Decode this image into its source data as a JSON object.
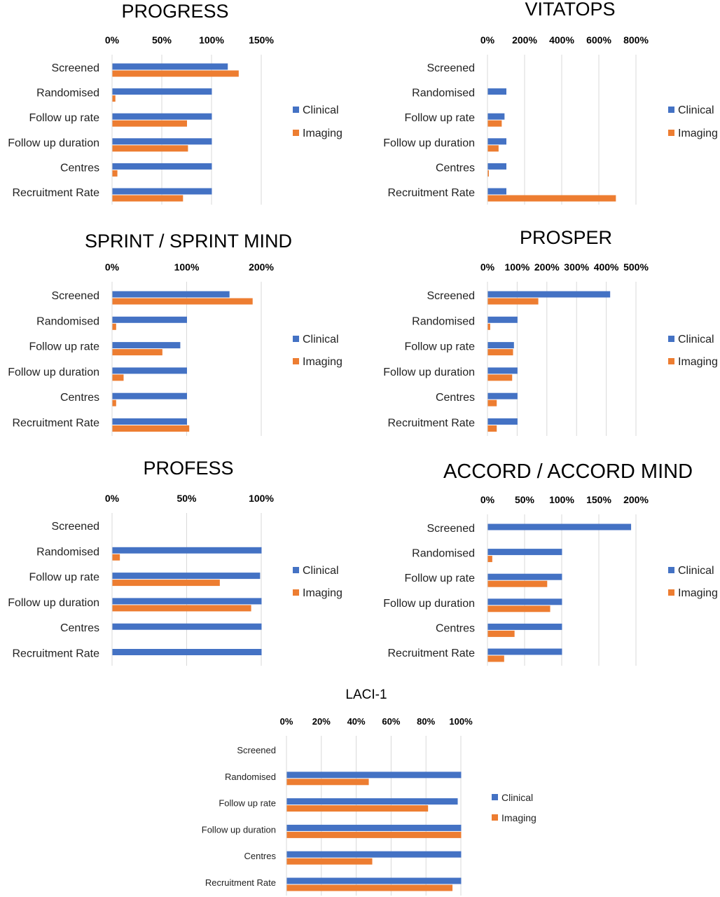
{
  "colors": {
    "clinical": "#4472C4",
    "imaging": "#ED7D31",
    "grid": "#D9D9D9"
  },
  "chart_data": [
    {
      "type": "bar",
      "orientation": "horizontal",
      "title": "PROGRESS",
      "categories": [
        "Screened",
        "Randomised",
        "Follow up rate",
        "Follow up duration",
        "Centres",
        "Recruitment Rate"
      ],
      "series": [
        {
          "name": "Clinical",
          "values": [
            116,
            100,
            100,
            100,
            100,
            100
          ]
        },
        {
          "name": "Imaging",
          "values": [
            127,
            3,
            75,
            76,
            5,
            71
          ]
        }
      ],
      "ticks": [
        0,
        50,
        100,
        150
      ],
      "tick_labels": [
        "0%",
        "50%",
        "100%",
        "150%"
      ],
      "xlim": [
        0,
        150
      ],
      "grid": true,
      "legend": "right"
    },
    {
      "type": "bar",
      "orientation": "horizontal",
      "title": "VITATOPS",
      "categories": [
        "Screened",
        "Randomised",
        "Follow up rate",
        "Follow up duration",
        "Centres",
        "Recruitment Rate"
      ],
      "series": [
        {
          "name": "Clinical",
          "values": [
            0,
            100,
            90,
            100,
            100,
            100
          ]
        },
        {
          "name": "Imaging",
          "values": [
            0,
            0,
            75,
            58,
            5,
            690
          ]
        }
      ],
      "ticks": [
        0,
        200,
        400,
        600,
        800
      ],
      "tick_labels": [
        "0%",
        "200%",
        "400%",
        "600%",
        "800%"
      ],
      "xlim": [
        0,
        800
      ],
      "grid": true,
      "legend": "right"
    },
    {
      "type": "bar",
      "orientation": "horizontal",
      "title": "SPRINT / SPRINT MIND",
      "categories": [
        "Screened",
        "Randomised",
        "Follow up rate",
        "Follow up duration",
        "Centres",
        "Recruitment Rate"
      ],
      "series": [
        {
          "name": "Clinical",
          "values": [
            157,
            100,
            91,
            100,
            100,
            100
          ]
        },
        {
          "name": "Imaging",
          "values": [
            188,
            5,
            67,
            15,
            5,
            103
          ]
        }
      ],
      "ticks": [
        0,
        100,
        200
      ],
      "tick_labels": [
        "0%",
        "100%",
        "200%"
      ],
      "xlim": [
        0,
        200
      ],
      "grid": true,
      "legend": "right"
    },
    {
      "type": "bar",
      "orientation": "horizontal",
      "title": "PROSPER",
      "categories": [
        "Screened",
        "Randomised",
        "Follow up rate",
        "Follow up duration",
        "Centres",
        "Recruitment Rate"
      ],
      "series": [
        {
          "name": "Clinical",
          "values": [
            412,
            100,
            88,
            100,
            100,
            100
          ]
        },
        {
          "name": "Imaging",
          "values": [
            170,
            8,
            85,
            82,
            30,
            30
          ]
        }
      ],
      "ticks": [
        0,
        100,
        200,
        300,
        400,
        500
      ],
      "tick_labels": [
        "0%",
        "100%",
        "200%",
        "300%",
        "400%",
        "500%"
      ],
      "xlim": [
        0,
        500
      ],
      "grid": true,
      "legend": "right"
    },
    {
      "type": "bar",
      "orientation": "horizontal",
      "title": "PROFESS",
      "categories": [
        "Screened",
        "Randomised",
        "Follow up rate",
        "Follow up duration",
        "Centres",
        "Recruitment Rate"
      ],
      "series": [
        {
          "name": "Clinical",
          "values": [
            0,
            100,
            99,
            100,
            100,
            100
          ]
        },
        {
          "name": "Imaging",
          "values": [
            0,
            5,
            72,
            93,
            0,
            0
          ]
        }
      ],
      "ticks": [
        0,
        50,
        100
      ],
      "tick_labels": [
        "0%",
        "50%",
        "100%"
      ],
      "xlim": [
        0,
        100
      ],
      "grid": true,
      "legend": "right"
    },
    {
      "type": "bar",
      "orientation": "horizontal",
      "title": "ACCORD / ACCORD MIND",
      "categories": [
        "Screened",
        "Randomised",
        "Follow up rate",
        "Follow up duration",
        "Centres",
        "Recruitment Rate"
      ],
      "series": [
        {
          "name": "Clinical",
          "values": [
            193,
            100,
            100,
            100,
            100,
            100
          ]
        },
        {
          "name": "Imaging",
          "values": [
            0,
            6,
            80,
            84,
            36,
            22
          ]
        }
      ],
      "ticks": [
        0,
        50,
        100,
        150,
        200
      ],
      "tick_labels": [
        "0%",
        "50%",
        "100%",
        "150%",
        "200%"
      ],
      "xlim": [
        0,
        200
      ],
      "grid": true,
      "legend": "right"
    },
    {
      "type": "bar",
      "orientation": "horizontal",
      "title": "LACI-1",
      "categories": [
        "Screened",
        "Randomised",
        "Follow up rate",
        "Follow up duration",
        "Centres",
        "Recruitment Rate"
      ],
      "series": [
        {
          "name": "Clinical",
          "values": [
            0,
            100,
            98,
            100,
            100,
            100
          ]
        },
        {
          "name": "Imaging",
          "values": [
            0,
            47,
            81,
            100,
            49,
            95
          ]
        }
      ],
      "ticks": [
        0,
        20,
        40,
        60,
        80,
        100
      ],
      "tick_labels": [
        "0%",
        "20%",
        "40%",
        "60%",
        "80%",
        "100%"
      ],
      "xlim": [
        0,
        100
      ],
      "grid": true,
      "legend": "right"
    }
  ]
}
